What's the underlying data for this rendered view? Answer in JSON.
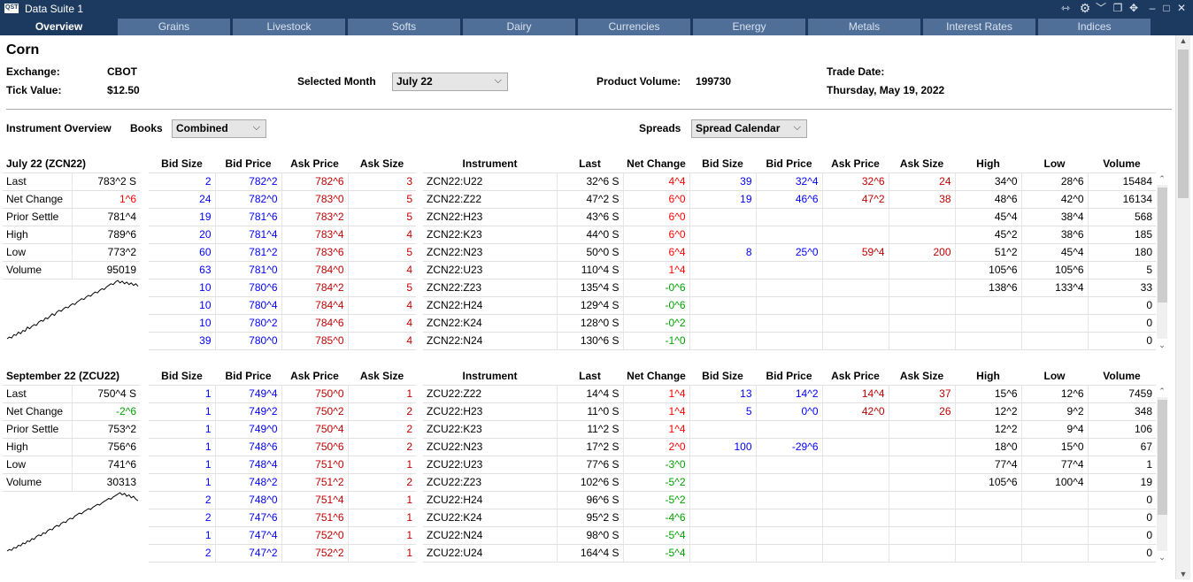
{
  "window": {
    "title": "Data Suite 1",
    "logo": "QST"
  },
  "tabs": [
    "Overview",
    "Grains",
    "Livestock",
    "Softs",
    "Dairy",
    "Currencies",
    "Energy",
    "Metals",
    "Interest Rates",
    "Indices"
  ],
  "header": {
    "product": "Corn",
    "exchange_label": "Exchange:",
    "exchange": "CBOT",
    "tick_label": "Tick Value:",
    "tick_value": "$12.50",
    "month_label": "Selected Month",
    "month": "July 22",
    "volume_label": "Product Volume:",
    "volume": "199730",
    "trade_date_label": "Trade Date:",
    "trade_date": "Thursday, May 19, 2022"
  },
  "controls": {
    "overview_label": "Instrument Overview",
    "books_label": "Books",
    "books": "Combined",
    "spreads_label": "Spreads",
    "spreads": "Spread Calendar"
  },
  "colors": {
    "titlebar": "#1c3a5f",
    "tab": "#4f6f99",
    "bid": "#0000ff",
    "ask": "#c00000",
    "up": "#ff0000",
    "down": "#00a000"
  },
  "book_headers": [
    "Bid Size",
    "Bid Price",
    "Ask Price",
    "Ask Size"
  ],
  "spread_headers": [
    "Instrument",
    "Last",
    "Net Change",
    "Bid Size",
    "Bid Price",
    "Ask Price",
    "Ask Size",
    "High",
    "Low",
    "Volume"
  ],
  "stat_labels": [
    "Last",
    "Net Change",
    "Prior Settle",
    "High",
    "Low",
    "Volume"
  ],
  "sections": [
    {
      "title": "July 22 (ZCN22)",
      "stats": {
        "last": "783^2 S",
        "net_change": "1^6",
        "prior_settle": "781^4",
        "high": "789^6",
        "low": "773^2",
        "volume": "95019"
      },
      "net_dir": "up",
      "book": [
        [
          "2",
          "782^2",
          "782^6",
          "3"
        ],
        [
          "24",
          "782^0",
          "783^0",
          "5"
        ],
        [
          "19",
          "781^6",
          "783^2",
          "5"
        ],
        [
          "20",
          "781^4",
          "783^4",
          "4"
        ],
        [
          "60",
          "781^2",
          "783^6",
          "5"
        ],
        [
          "63",
          "781^0",
          "784^0",
          "4"
        ],
        [
          "10",
          "780^6",
          "784^2",
          "5"
        ],
        [
          "10",
          "780^4",
          "784^4",
          "4"
        ],
        [
          "10",
          "780^2",
          "784^6",
          "4"
        ],
        [
          "39",
          "780^0",
          "785^0",
          "4"
        ]
      ],
      "spreads": [
        {
          "inst": "ZCN22:U22",
          "last": "32^6 S",
          "chg": "4^4",
          "dir": "up",
          "bs": "39",
          "bp": "32^4",
          "ap": "32^6",
          "as": "24",
          "hi": "34^0",
          "lo": "28^6",
          "vol": "15484"
        },
        {
          "inst": "ZCN22:Z22",
          "last": "47^2 S",
          "chg": "6^0",
          "dir": "up",
          "bs": "19",
          "bp": "46^6",
          "ap": "47^2",
          "as": "38",
          "hi": "48^6",
          "lo": "42^0",
          "vol": "16134"
        },
        {
          "inst": "ZCN22:H23",
          "last": "43^6 S",
          "chg": "6^0",
          "dir": "up",
          "bs": "",
          "bp": "",
          "ap": "",
          "as": "",
          "hi": "45^4",
          "lo": "38^4",
          "vol": "568"
        },
        {
          "inst": "ZCN22:K23",
          "last": "44^0 S",
          "chg": "6^0",
          "dir": "up",
          "bs": "",
          "bp": "",
          "ap": "",
          "as": "",
          "hi": "45^2",
          "lo": "38^6",
          "vol": "185"
        },
        {
          "inst": "ZCN22:N23",
          "last": "50^0 S",
          "chg": "6^4",
          "dir": "up",
          "bs": "8",
          "bp": "25^0",
          "ap": "59^4",
          "as": "200",
          "hi": "51^2",
          "lo": "45^4",
          "vol": "180"
        },
        {
          "inst": "ZCN22:U23",
          "last": "110^4 S",
          "chg": "1^4",
          "dir": "up",
          "bs": "",
          "bp": "",
          "ap": "",
          "as": "",
          "hi": "105^6",
          "lo": "105^6",
          "vol": "5"
        },
        {
          "inst": "ZCN22:Z23",
          "last": "135^4 S",
          "chg": "-0^6",
          "dir": "down",
          "bs": "",
          "bp": "",
          "ap": "",
          "as": "",
          "hi": "138^6",
          "lo": "133^4",
          "vol": "33"
        },
        {
          "inst": "ZCN22:H24",
          "last": "129^4 S",
          "chg": "-0^6",
          "dir": "down",
          "bs": "",
          "bp": "",
          "ap": "",
          "as": "",
          "hi": "",
          "lo": "",
          "vol": "0"
        },
        {
          "inst": "ZCN22:K24",
          "last": "128^0 S",
          "chg": "-0^2",
          "dir": "down",
          "bs": "",
          "bp": "",
          "ap": "",
          "as": "",
          "hi": "",
          "lo": "",
          "vol": "0"
        },
        {
          "inst": "ZCN22:N24",
          "last": "130^6 S",
          "chg": "-1^0",
          "dir": "down",
          "bs": "",
          "bp": "",
          "ap": "",
          "as": "",
          "hi": "",
          "lo": "",
          "vol": "0"
        }
      ],
      "spark": [
        30,
        32,
        31,
        35,
        34,
        38,
        36,
        40,
        39,
        44,
        42,
        45,
        47,
        46,
        50,
        52,
        51,
        55,
        54,
        57,
        60,
        58,
        62,
        64,
        63,
        66,
        68,
        67,
        70,
        72,
        71,
        74,
        76,
        78,
        77,
        80,
        82,
        81,
        84,
        86,
        85,
        88,
        90,
        89,
        92,
        94,
        96,
        95,
        98,
        100,
        97,
        99,
        96,
        98,
        95,
        97,
        94,
        96,
        93
      ]
    },
    {
      "title": "September 22 (ZCU22)",
      "stats": {
        "last": "750^4 S",
        "net_change": "-2^6",
        "prior_settle": "753^2",
        "high": "756^6",
        "low": "741^6",
        "volume": "30313"
      },
      "net_dir": "down",
      "book": [
        [
          "1",
          "749^4",
          "750^0",
          "1"
        ],
        [
          "1",
          "749^2",
          "750^2",
          "2"
        ],
        [
          "1",
          "749^0",
          "750^4",
          "2"
        ],
        [
          "1",
          "748^6",
          "750^6",
          "2"
        ],
        [
          "1",
          "748^4",
          "751^0",
          "1"
        ],
        [
          "1",
          "748^2",
          "751^2",
          "2"
        ],
        [
          "2",
          "748^0",
          "751^4",
          "1"
        ],
        [
          "2",
          "747^6",
          "751^6",
          "1"
        ],
        [
          "1",
          "747^4",
          "752^0",
          "1"
        ],
        [
          "2",
          "747^2",
          "752^2",
          "1"
        ]
      ],
      "spreads": [
        {
          "inst": "ZCU22:Z22",
          "last": "14^4 S",
          "chg": "1^4",
          "dir": "up",
          "bs": "13",
          "bp": "14^2",
          "ap": "14^4",
          "as": "37",
          "hi": "15^6",
          "lo": "12^6",
          "vol": "7459"
        },
        {
          "inst": "ZCU22:H23",
          "last": "11^0 S",
          "chg": "1^4",
          "dir": "up",
          "bs": "5",
          "bp": "0^0",
          "ap": "42^0",
          "as": "26",
          "hi": "12^2",
          "lo": "9^2",
          "vol": "348"
        },
        {
          "inst": "ZCU22:K23",
          "last": "11^2 S",
          "chg": "1^4",
          "dir": "up",
          "bs": "",
          "bp": "",
          "ap": "",
          "as": "",
          "hi": "12^2",
          "lo": "9^4",
          "vol": "106"
        },
        {
          "inst": "ZCU22:N23",
          "last": "17^2 S",
          "chg": "2^0",
          "dir": "up",
          "bs": "100",
          "bp": "-29^6",
          "ap": "",
          "as": "",
          "hi": "18^0",
          "lo": "15^0",
          "vol": "67"
        },
        {
          "inst": "ZCU22:U23",
          "last": "77^6 S",
          "chg": "-3^0",
          "dir": "down",
          "bs": "",
          "bp": "",
          "ap": "",
          "as": "",
          "hi": "77^4",
          "lo": "77^4",
          "vol": "1"
        },
        {
          "inst": "ZCU22:Z23",
          "last": "102^6 S",
          "chg": "-5^2",
          "dir": "down",
          "bs": "",
          "bp": "",
          "ap": "",
          "as": "",
          "hi": "105^6",
          "lo": "100^4",
          "vol": "19"
        },
        {
          "inst": "ZCU22:H24",
          "last": "96^6 S",
          "chg": "-5^2",
          "dir": "down",
          "bs": "",
          "bp": "",
          "ap": "",
          "as": "",
          "hi": "",
          "lo": "",
          "vol": "0"
        },
        {
          "inst": "ZCU22:K24",
          "last": "95^2 S",
          "chg": "-4^6",
          "dir": "down",
          "bs": "",
          "bp": "",
          "ap": "",
          "as": "",
          "hi": "",
          "lo": "",
          "vol": "0"
        },
        {
          "inst": "ZCU22:N24",
          "last": "98^0 S",
          "chg": "-5^4",
          "dir": "down",
          "bs": "",
          "bp": "",
          "ap": "",
          "as": "",
          "hi": "",
          "lo": "",
          "vol": "0"
        },
        {
          "inst": "ZCU22:U24",
          "last": "164^4 S",
          "chg": "-5^4",
          "dir": "down",
          "bs": "",
          "bp": "",
          "ap": "",
          "as": "",
          "hi": "",
          "lo": "",
          "vol": "0"
        }
      ],
      "spark": [
        20,
        22,
        21,
        25,
        24,
        28,
        27,
        31,
        30,
        34,
        33,
        37,
        36,
        40,
        42,
        41,
        45,
        44,
        48,
        50,
        49,
        53,
        55,
        54,
        58,
        60,
        59,
        63,
        65,
        64,
        68,
        70,
        72,
        71,
        74,
        76,
        78,
        77,
        80,
        82,
        84,
        83,
        86,
        88,
        90,
        92,
        91,
        94,
        96,
        98,
        100,
        97,
        99,
        95,
        97,
        93,
        95,
        91,
        89
      ]
    }
  ]
}
